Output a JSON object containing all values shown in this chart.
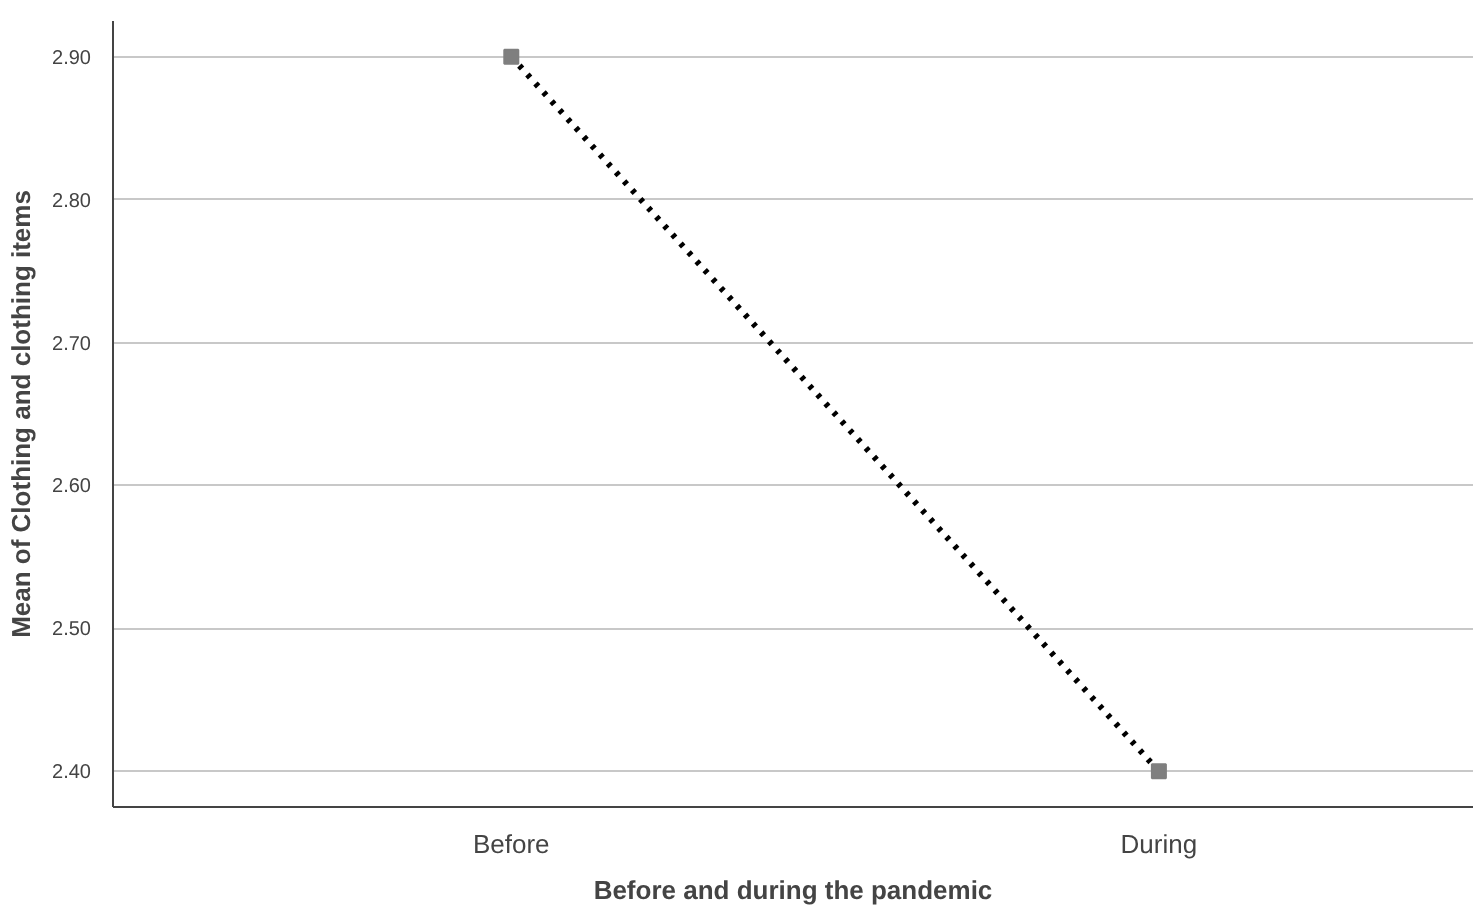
{
  "chart_data": {
    "type": "line",
    "xlabel": "Before and during the pandemic",
    "ylabel": "Mean of Clothing and clothing items",
    "categories": [
      "Before",
      "During"
    ],
    "series": [
      {
        "color": "#000000",
        "values": [
          2.9,
          2.4
        ]
      }
    ],
    "ylim": [
      2.375,
      2.925
    ],
    "yticks": [
      {
        "value": 2.4,
        "label": "2.40"
      },
      {
        "value": 2.5,
        "label": "2.50"
      },
      {
        "value": 2.6,
        "label": "2.60"
      },
      {
        "value": 2.7,
        "label": "2.70"
      },
      {
        "value": 2.8,
        "label": "2.80"
      },
      {
        "value": 2.9,
        "label": "2.90"
      }
    ],
    "grid": "y",
    "marker": "square",
    "line_style": "dotted"
  }
}
